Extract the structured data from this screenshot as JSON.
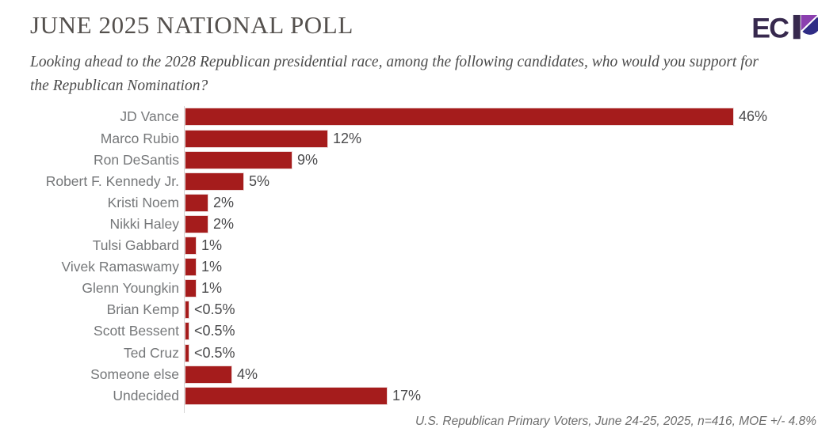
{
  "header": {
    "title": "JUNE 2025 NATIONAL POLL",
    "logo_text": "EC"
  },
  "question": "Looking ahead to the 2028 Republican presidential race, among the following candidates, who would you support for the Republican Nomination?",
  "source_note": "U.S. Republican Primary Voters, June 24-25, 2025, n=416, MOE +/- 4.8%",
  "colors": {
    "bar": "#a51c1c",
    "bar_stroke": "#edd9d9",
    "logo_dark": "#37294e",
    "logo_purple": "#8b3faf",
    "logo_blue": "#2f2c85",
    "axis": "#d6d6d6"
  },
  "chart_data": {
    "type": "bar",
    "orientation": "horizontal",
    "title": "2028 Republican presidential nomination support",
    "categories": [
      "JD Vance",
      "Marco Rubio",
      "Ron DeSantis",
      "Robert F. Kennedy Jr.",
      "Kristi Noem",
      "Nikki Haley",
      "Tulsi Gabbard",
      "Vivek Ramaswamy",
      "Glenn Youngkin",
      "Brian Kemp",
      "Scott Bessent",
      "Ted Cruz",
      "Someone else",
      "Undecided"
    ],
    "values": [
      46,
      12,
      9,
      5,
      2,
      2,
      1,
      1,
      1,
      0.4,
      0.4,
      0.4,
      4,
      17
    ],
    "value_labels": [
      "46%",
      "12%",
      "9%",
      "5%",
      "2%",
      "2%",
      "1%",
      "1%",
      "1%",
      "<0.5%",
      "<0.5%",
      "<0.5%",
      "4%",
      "17%"
    ],
    "xlim": [
      0,
      48
    ],
    "grid": false,
    "legend": false
  }
}
